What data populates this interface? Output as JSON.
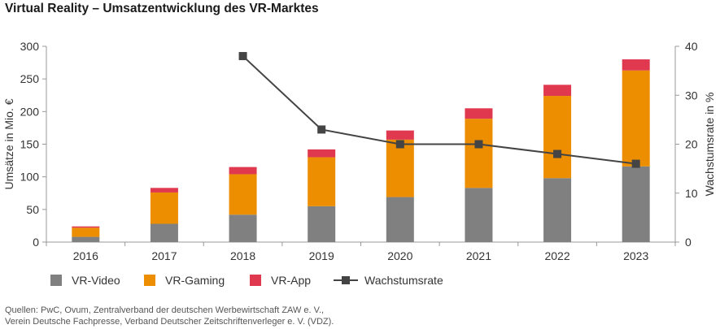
{
  "title": "Virtual Reality – Umsatzentwicklung des VR-Marktes",
  "source": {
    "line1": "Quellen: PwC, Ovum, Zentralverband der deutschen Werbewirtschaft ZAW e. V.,",
    "line2": "Verein Deutsche Fachpresse, Verband Deutscher Zeitschriftenverleger e. V. (VDZ)."
  },
  "legend": {
    "video": "VR-Video",
    "gaming": "VR-Gaming",
    "app": "VR-App",
    "rate": "Wachstumsrate"
  },
  "chart_data": {
    "type": "bar",
    "stacked": true,
    "title": "Virtual Reality – Umsatzentwicklung des VR-Marktes",
    "categories": [
      "2016",
      "2017",
      "2018",
      "2019",
      "2020",
      "2021",
      "2022",
      "2023"
    ],
    "series": [
      {
        "name": "VR-Video",
        "color": "#808080",
        "values": [
          8,
          28,
          42,
          55,
          69,
          83,
          98,
          116
        ]
      },
      {
        "name": "VR-Gaming",
        "color": "#ec8e00",
        "values": [
          14,
          48,
          62,
          75,
          88,
          106,
          126,
          147
        ]
      },
      {
        "name": "VR-App",
        "color": "#e0384f",
        "values": [
          2,
          7,
          11,
          12,
          14,
          16,
          17,
          17
        ]
      }
    ],
    "line_series": {
      "name": "Wachstumsrate",
      "color": "#444444",
      "axis": "right",
      "values": [
        null,
        null,
        38,
        23,
        20,
        20,
        18,
        16
      ]
    },
    "ylabel": "Umsätze in Mio. €",
    "ylabel_right": "Wachstumsrate in %",
    "ylim": [
      0,
      300
    ],
    "yticks": [
      0,
      50,
      100,
      150,
      200,
      250,
      300
    ],
    "ylim_right": [
      0,
      40
    ],
    "yticks_right": [
      0,
      10,
      20,
      30,
      40
    ],
    "grid": false,
    "legend_position": "bottom"
  }
}
